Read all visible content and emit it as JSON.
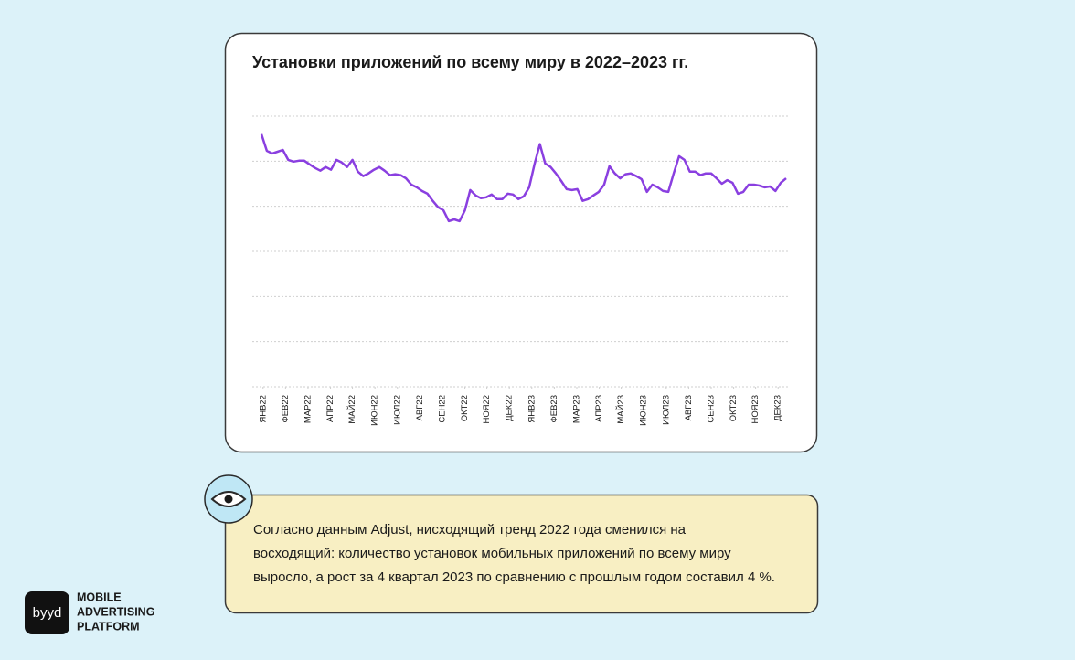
{
  "chart_data": {
    "type": "line",
    "title": "Установки приложений по всему миру в 2022–2023 гг.",
    "x": [
      0,
      1,
      2,
      3,
      4,
      5,
      6,
      7,
      8,
      9,
      10,
      11,
      12,
      13,
      14,
      15,
      16,
      17,
      18,
      19,
      20,
      21,
      22,
      23,
      24,
      25,
      26,
      27,
      28,
      29,
      30,
      31,
      32,
      33,
      34,
      35,
      36,
      37,
      38,
      39,
      40,
      41,
      42,
      43,
      44,
      45,
      46,
      47,
      48,
      49,
      50,
      51,
      52,
      53,
      54,
      55,
      56,
      57,
      58,
      59,
      60,
      61,
      62,
      63,
      64,
      65,
      66,
      67,
      68,
      69,
      70,
      71,
      72,
      73,
      74,
      75,
      76,
      77,
      78,
      79,
      80,
      81,
      82,
      83,
      84,
      85,
      86,
      87,
      88,
      89,
      90,
      91,
      92,
      93,
      94,
      95,
      96,
      97,
      98
    ],
    "series": [
      {
        "color": "#8a3fe0",
        "values": [
          5.6,
          5.23,
          5.17,
          5.21,
          5.25,
          5.03,
          4.99,
          5.01,
          5.01,
          4.93,
          4.85,
          4.79,
          4.87,
          4.81,
          5.03,
          4.97,
          4.87,
          5.03,
          4.77,
          4.67,
          4.73,
          4.81,
          4.87,
          4.79,
          4.69,
          4.71,
          4.69,
          4.62,
          4.48,
          4.42,
          4.34,
          4.28,
          4.12,
          3.98,
          3.91,
          3.67,
          3.71,
          3.67,
          3.91,
          4.36,
          4.24,
          4.18,
          4.2,
          4.26,
          4.16,
          4.16,
          4.28,
          4.26,
          4.16,
          4.22,
          4.42,
          4.93,
          5.38,
          4.95,
          4.87,
          4.73,
          4.56,
          4.38,
          4.36,
          4.38,
          4.12,
          4.16,
          4.24,
          4.32,
          4.48,
          4.89,
          4.73,
          4.62,
          4.71,
          4.73,
          4.67,
          4.6,
          4.32,
          4.48,
          4.42,
          4.34,
          4.32,
          4.73,
          5.11,
          5.03,
          4.77,
          4.77,
          4.69,
          4.73,
          4.73,
          4.62,
          4.5,
          4.58,
          4.52,
          4.28,
          4.32,
          4.48,
          4.48,
          4.46,
          4.42,
          4.44,
          4.34,
          4.52,
          4.62
        ]
      }
    ],
    "xlim": [
      0,
      98
    ],
    "xticks": [
      {
        "value": 0.3,
        "label": "ЯНВ22"
      },
      {
        "value": 4.5,
        "label": "ФЕВ22"
      },
      {
        "value": 8.7,
        "label": "МАР22"
      },
      {
        "value": 12.9,
        "label": "АПР22"
      },
      {
        "value": 17.0,
        "label": "МАЙ22"
      },
      {
        "value": 21.2,
        "label": "ИЮН22"
      },
      {
        "value": 25.4,
        "label": "ИЮЛ22"
      },
      {
        "value": 29.6,
        "label": "АВГ22"
      },
      {
        "value": 33.8,
        "label": "СЕН22"
      },
      {
        "value": 38.0,
        "label": "ОКТ22"
      },
      {
        "value": 42.1,
        "label": "НОЯ22"
      },
      {
        "value": 46.3,
        "label": "ДЕК22"
      },
      {
        "value": 50.5,
        "label": "ЯНВ23"
      },
      {
        "value": 54.7,
        "label": "ФЕВ23"
      },
      {
        "value": 58.9,
        "label": "МАР23"
      },
      {
        "value": 63.1,
        "label": "АПР23"
      },
      {
        "value": 67.2,
        "label": "МАЙ23"
      },
      {
        "value": 71.4,
        "label": "ИЮН23"
      },
      {
        "value": 75.6,
        "label": "ИЮЛ23"
      },
      {
        "value": 79.8,
        "label": "АВГ23"
      },
      {
        "value": 84.0,
        "label": "СЕН23"
      },
      {
        "value": 88.2,
        "label": "ОКТ23"
      },
      {
        "value": 92.3,
        "label": "НОЯ23"
      },
      {
        "value": 96.5,
        "label": "ДЕК23"
      }
    ],
    "ylim": [
      0,
      6
    ],
    "yticks": [
      0,
      1,
      2,
      3,
      4,
      5,
      6
    ],
    "grid": true
  },
  "note": {
    "lines": [
      "Согласно данным Adjust, нисходящий тренд 2022 года сменился на",
      "восходящий: количество установок мобильных приложений по всему миру",
      "выросло, а рост за 4 квартал 2023 по сравнению с прошлым годом составил 4 %."
    ]
  },
  "brand": {
    "logo": "byyd",
    "lines": [
      "MOBILE",
      "ADVERTISING",
      "PLATFORM"
    ]
  }
}
